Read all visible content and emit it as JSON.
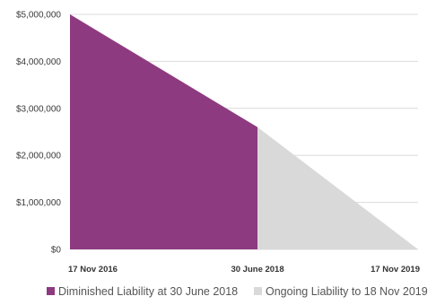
{
  "chart_data": {
    "type": "area",
    "title": "",
    "xlabel": "",
    "ylabel": "",
    "x_ticks": [
      "17 Nov 2016",
      "30 June 2018",
      "17 Nov 2019"
    ],
    "y_ticks": [
      "$5,000,000",
      "$4,000,000",
      "$3,000,000",
      "$2,000,000",
      "$1,000,000",
      "$0"
    ],
    "ylim": [
      0,
      5000000
    ],
    "x_range": [
      "17 Nov 2016",
      "17 Nov 2019"
    ],
    "grid": "horizontal",
    "legend_position": "bottom",
    "series": [
      {
        "name": "Diminished Liability at 30 June 2018",
        "color": "#8e3a80",
        "points": [
          {
            "x": "17 Nov 2016",
            "y": 5000000
          },
          {
            "x": "30 June 2018",
            "y": 2600000
          }
        ]
      },
      {
        "name": "Ongoing Liability to 18 Nov 2019",
        "color": "#d9d9d9",
        "points": [
          {
            "x": "30 June 2018",
            "y": 2600000
          },
          {
            "x": "17 Nov 2019",
            "y": 0
          }
        ]
      }
    ]
  }
}
